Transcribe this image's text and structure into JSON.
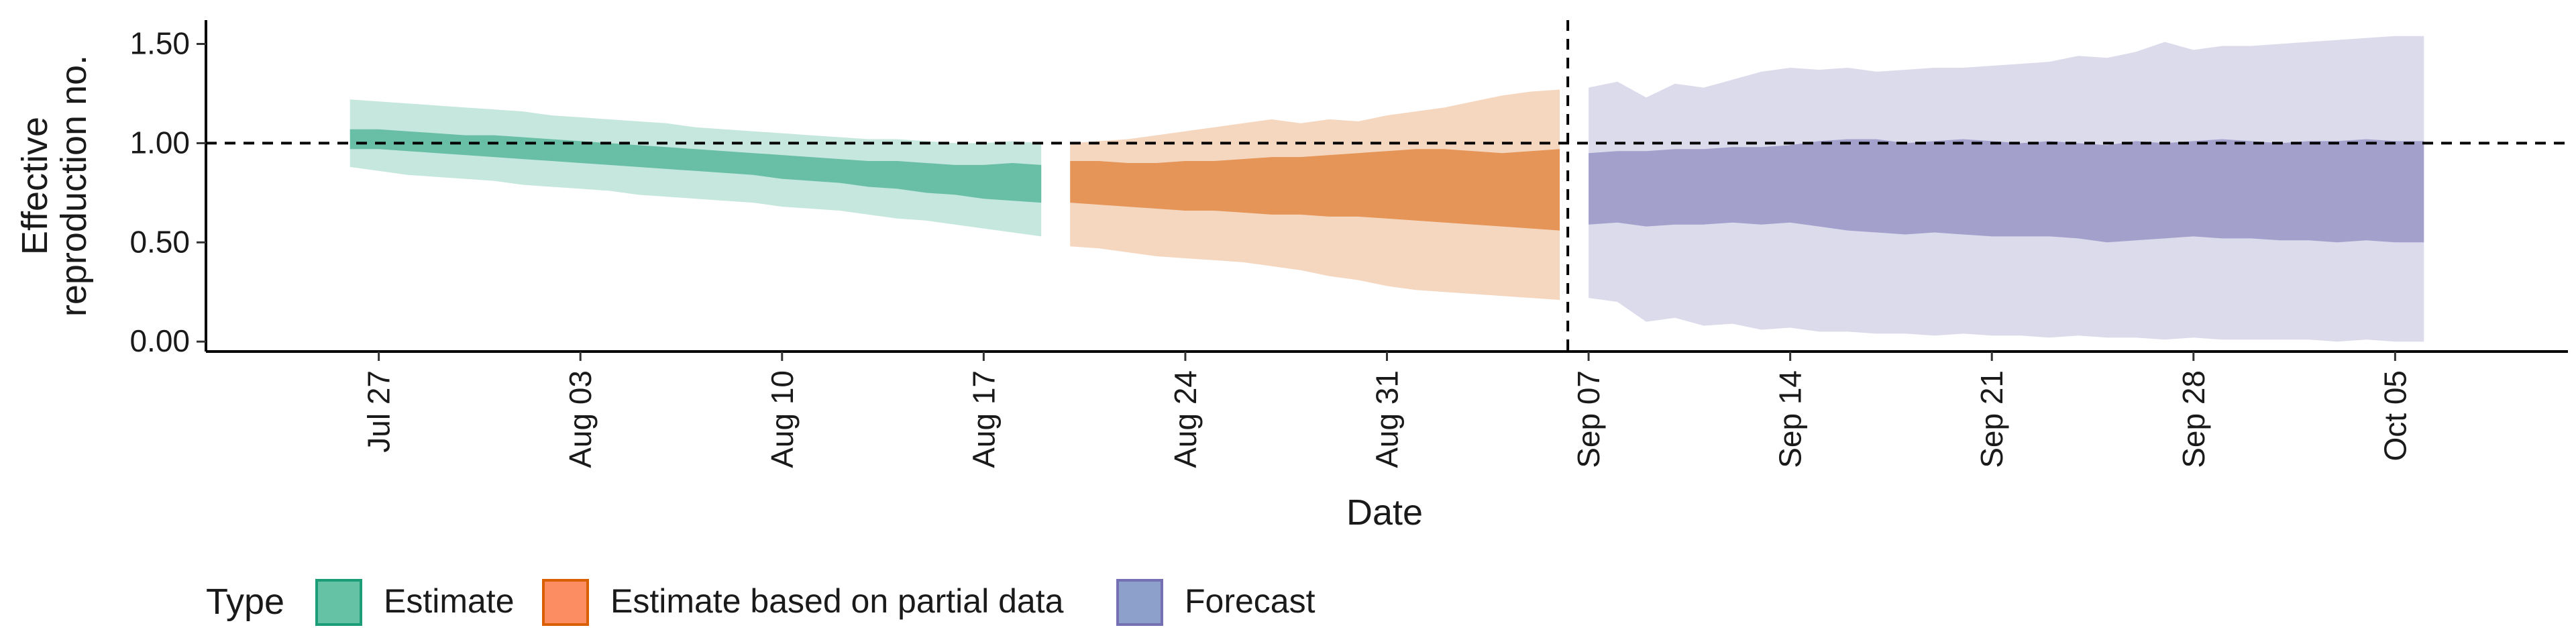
{
  "chart_data": {
    "type": "area",
    "xlabel": "Date",
    "ylabel_lines": [
      "Effective",
      "reproduction no."
    ],
    "ylim": [
      -0.05,
      1.62
    ],
    "yticks": [
      0.0,
      0.5,
      1.0,
      1.5
    ],
    "ytick_labels": [
      "0.00",
      "0.50",
      "1.00",
      "1.50"
    ],
    "xlim": [
      "2020-07-21",
      "2020-10-11"
    ],
    "xticks": [
      "2020-07-27",
      "2020-08-03",
      "2020-08-10",
      "2020-08-17",
      "2020-08-24",
      "2020-08-31",
      "2020-09-07",
      "2020-09-14",
      "2020-09-21",
      "2020-09-28",
      "2020-10-05"
    ],
    "xtick_labels": [
      "Jul 27",
      "Aug 03",
      "Aug 10",
      "Aug 17",
      "Aug 24",
      "Aug 31",
      "Sep 07",
      "Sep 14",
      "Sep 21",
      "Sep 28",
      "Oct 05"
    ],
    "hline": 1.0,
    "vline": "2020-09-06",
    "legend": {
      "title": "Type",
      "position": "bottom-left",
      "items": [
        {
          "label": "Estimate",
          "fill": "#66c2a5",
          "stroke": "#1b9e77"
        },
        {
          "label": "Estimate based on partial data",
          "fill": "#fc8d62",
          "stroke": "#d95f02"
        },
        {
          "label": "Forecast",
          "fill": "#8da0cb",
          "stroke": "#7570b3"
        }
      ]
    },
    "series": [
      {
        "name": "Estimate",
        "color": "#1b9e77",
        "x": [
          "2020-07-26",
          "2020-07-27",
          "2020-07-28",
          "2020-07-29",
          "2020-07-30",
          "2020-07-31",
          "2020-08-01",
          "2020-08-02",
          "2020-08-03",
          "2020-08-04",
          "2020-08-05",
          "2020-08-06",
          "2020-08-07",
          "2020-08-08",
          "2020-08-09",
          "2020-08-10",
          "2020-08-11",
          "2020-08-12",
          "2020-08-13",
          "2020-08-14",
          "2020-08-15",
          "2020-08-16",
          "2020-08-17",
          "2020-08-18",
          "2020-08-19"
        ],
        "lower_90": [
          0.88,
          0.86,
          0.84,
          0.83,
          0.82,
          0.81,
          0.79,
          0.78,
          0.77,
          0.76,
          0.74,
          0.73,
          0.72,
          0.71,
          0.7,
          0.68,
          0.67,
          0.66,
          0.64,
          0.62,
          0.61,
          0.59,
          0.57,
          0.55,
          0.53
        ],
        "upper_90": [
          1.22,
          1.21,
          1.2,
          1.19,
          1.18,
          1.17,
          1.16,
          1.14,
          1.13,
          1.12,
          1.11,
          1.1,
          1.08,
          1.07,
          1.06,
          1.05,
          1.04,
          1.03,
          1.02,
          1.02,
          1.01,
          1.0,
          1.0,
          1.01,
          1.0
        ],
        "lower_50": [
          0.97,
          0.97,
          0.96,
          0.95,
          0.94,
          0.93,
          0.92,
          0.91,
          0.9,
          0.89,
          0.88,
          0.87,
          0.86,
          0.85,
          0.84,
          0.82,
          0.81,
          0.8,
          0.78,
          0.77,
          0.75,
          0.74,
          0.72,
          0.71,
          0.7
        ],
        "upper_50": [
          1.07,
          1.07,
          1.06,
          1.05,
          1.04,
          1.04,
          1.03,
          1.02,
          1.01,
          1.0,
          0.99,
          0.98,
          0.97,
          0.96,
          0.95,
          0.94,
          0.93,
          0.92,
          0.91,
          0.91,
          0.9,
          0.89,
          0.89,
          0.9,
          0.89
        ]
      },
      {
        "name": "Estimate based on partial data",
        "color": "#d95f02",
        "x": [
          "2020-08-20",
          "2020-08-21",
          "2020-08-22",
          "2020-08-23",
          "2020-08-24",
          "2020-08-25",
          "2020-08-26",
          "2020-08-27",
          "2020-08-28",
          "2020-08-29",
          "2020-08-30",
          "2020-08-31",
          "2020-09-01",
          "2020-09-02",
          "2020-09-03",
          "2020-09-04",
          "2020-09-05",
          "2020-09-06"
        ],
        "lower_90": [
          0.48,
          0.47,
          0.45,
          0.43,
          0.42,
          0.41,
          0.4,
          0.38,
          0.36,
          0.33,
          0.31,
          0.28,
          0.26,
          0.25,
          0.24,
          0.23,
          0.22,
          0.21
        ],
        "upper_90": [
          1.0,
          1.01,
          1.02,
          1.04,
          1.06,
          1.08,
          1.1,
          1.12,
          1.1,
          1.12,
          1.11,
          1.14,
          1.16,
          1.18,
          1.21,
          1.24,
          1.26,
          1.27
        ],
        "lower_50": [
          0.7,
          0.69,
          0.68,
          0.67,
          0.66,
          0.66,
          0.65,
          0.64,
          0.64,
          0.63,
          0.63,
          0.62,
          0.61,
          0.6,
          0.59,
          0.58,
          0.57,
          0.56
        ],
        "upper_50": [
          0.91,
          0.91,
          0.9,
          0.9,
          0.91,
          0.91,
          0.92,
          0.93,
          0.93,
          0.94,
          0.95,
          0.96,
          0.97,
          0.97,
          0.96,
          0.95,
          0.96,
          0.97
        ]
      },
      {
        "name": "Forecast",
        "color": "#7570b3",
        "x": [
          "2020-09-07",
          "2020-09-08",
          "2020-09-09",
          "2020-09-10",
          "2020-09-11",
          "2020-09-12",
          "2020-09-13",
          "2020-09-14",
          "2020-09-15",
          "2020-09-16",
          "2020-09-17",
          "2020-09-18",
          "2020-09-19",
          "2020-09-20",
          "2020-09-21",
          "2020-09-22",
          "2020-09-23",
          "2020-09-24",
          "2020-09-25",
          "2020-09-26",
          "2020-09-27",
          "2020-09-28",
          "2020-09-29",
          "2020-09-30",
          "2020-10-01",
          "2020-10-02",
          "2020-10-03",
          "2020-10-04",
          "2020-10-05",
          "2020-10-06"
        ],
        "lower_90": [
          0.22,
          0.2,
          0.1,
          0.12,
          0.08,
          0.09,
          0.06,
          0.07,
          0.05,
          0.05,
          0.04,
          0.04,
          0.03,
          0.04,
          0.03,
          0.03,
          0.02,
          0.03,
          0.02,
          0.02,
          0.01,
          0.02,
          0.01,
          0.01,
          0.01,
          0.01,
          0.0,
          0.01,
          0.0,
          0.0
        ],
        "upper_90": [
          1.28,
          1.31,
          1.23,
          1.3,
          1.28,
          1.32,
          1.36,
          1.38,
          1.37,
          1.38,
          1.36,
          1.37,
          1.38,
          1.38,
          1.39,
          1.4,
          1.41,
          1.44,
          1.43,
          1.46,
          1.51,
          1.47,
          1.49,
          1.49,
          1.5,
          1.51,
          1.52,
          1.53,
          1.54,
          1.54
        ],
        "lower_50": [
          0.59,
          0.6,
          0.58,
          0.59,
          0.59,
          0.6,
          0.59,
          0.6,
          0.58,
          0.56,
          0.55,
          0.54,
          0.55,
          0.54,
          0.53,
          0.53,
          0.53,
          0.52,
          0.5,
          0.51,
          0.52,
          0.53,
          0.52,
          0.52,
          0.51,
          0.51,
          0.5,
          0.51,
          0.5,
          0.5
        ],
        "upper_50": [
          0.95,
          0.96,
          0.96,
          0.97,
          0.97,
          0.98,
          0.98,
          0.99,
          1.01,
          1.02,
          1.02,
          1.0,
          1.01,
          1.02,
          1.01,
          1.0,
          1.01,
          1.0,
          0.99,
          1.01,
          1.0,
          1.01,
          1.02,
          1.01,
          1.0,
          1.01,
          1.01,
          1.02,
          1.01,
          1.01
        ]
      }
    ]
  }
}
